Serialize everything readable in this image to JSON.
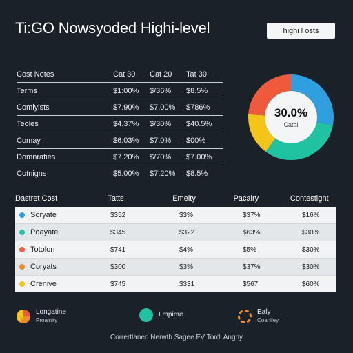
{
  "title": "Ti:GO Nowsyoded Highi-level",
  "top_button": "highi l osts",
  "upper_table": {
    "headers": [
      "Cost Notes",
      "Cat 30",
      "Cat 20",
      "Tat 30"
    ],
    "rows": [
      [
        "Terms",
        "$1:00%",
        "$/36%",
        "$8.5%"
      ],
      [
        "Comlyists",
        "$7.90%",
        "$7.00%",
        "$786%"
      ],
      [
        "Teoles",
        "$4.37%",
        "$/30%",
        "$40.5%"
      ],
      [
        "Comay",
        "$6.03%",
        "$7.0%",
        "$00%"
      ],
      [
        "Domnraties",
        "$7.20%",
        "$/70%",
        "$7.00%"
      ],
      [
        "Cotnigns",
        "$5.00%",
        "$7.20%",
        "$8.5%"
      ]
    ]
  },
  "donut": {
    "center_value": "30.0%",
    "center_label": "Catal",
    "segments": [
      {
        "color": "#2f9fe0",
        "value": 28
      },
      {
        "color": "#1fc3a2",
        "value": 32
      },
      {
        "color": "#f5c419",
        "value": 16
      },
      {
        "color": "#ef5a3c",
        "value": 24
      }
    ]
  },
  "lower_table": {
    "headers": [
      "Dastret Cost",
      "Tatts",
      "Emelty",
      "Pacalry",
      "Contestight"
    ],
    "rows": [
      {
        "dot": "#2f9fe0",
        "cells": [
          "Soryate",
          "$352",
          "$3%",
          "$37%",
          "$16%"
        ]
      },
      {
        "dot": "#1fc3a2",
        "cells": [
          "Poayate",
          "$345",
          "$322",
          "$63%",
          "$30%"
        ]
      },
      {
        "dot": "#ef5a3c",
        "cells": [
          "Totolon",
          "$741",
          "$4%",
          "$5%",
          "$30%"
        ]
      },
      {
        "dot": "#f08a2a",
        "cells": [
          "Coryats",
          "$300",
          "$3%",
          "$37%",
          "$30%"
        ]
      },
      {
        "dot": "#f5c419",
        "cells": [
          "Crenive",
          "$745",
          "$331",
          "$567",
          "$60%"
        ]
      }
    ]
  },
  "legend": [
    {
      "label": "Longatine",
      "sub": "Proainity"
    },
    {
      "label": "Lmpime",
      "sub": ""
    },
    {
      "label": "Ealy",
      "sub": "Coaniley"
    }
  ],
  "footer": "Corrertlaned Nerwth Sagee FV Tordi Anghy"
}
